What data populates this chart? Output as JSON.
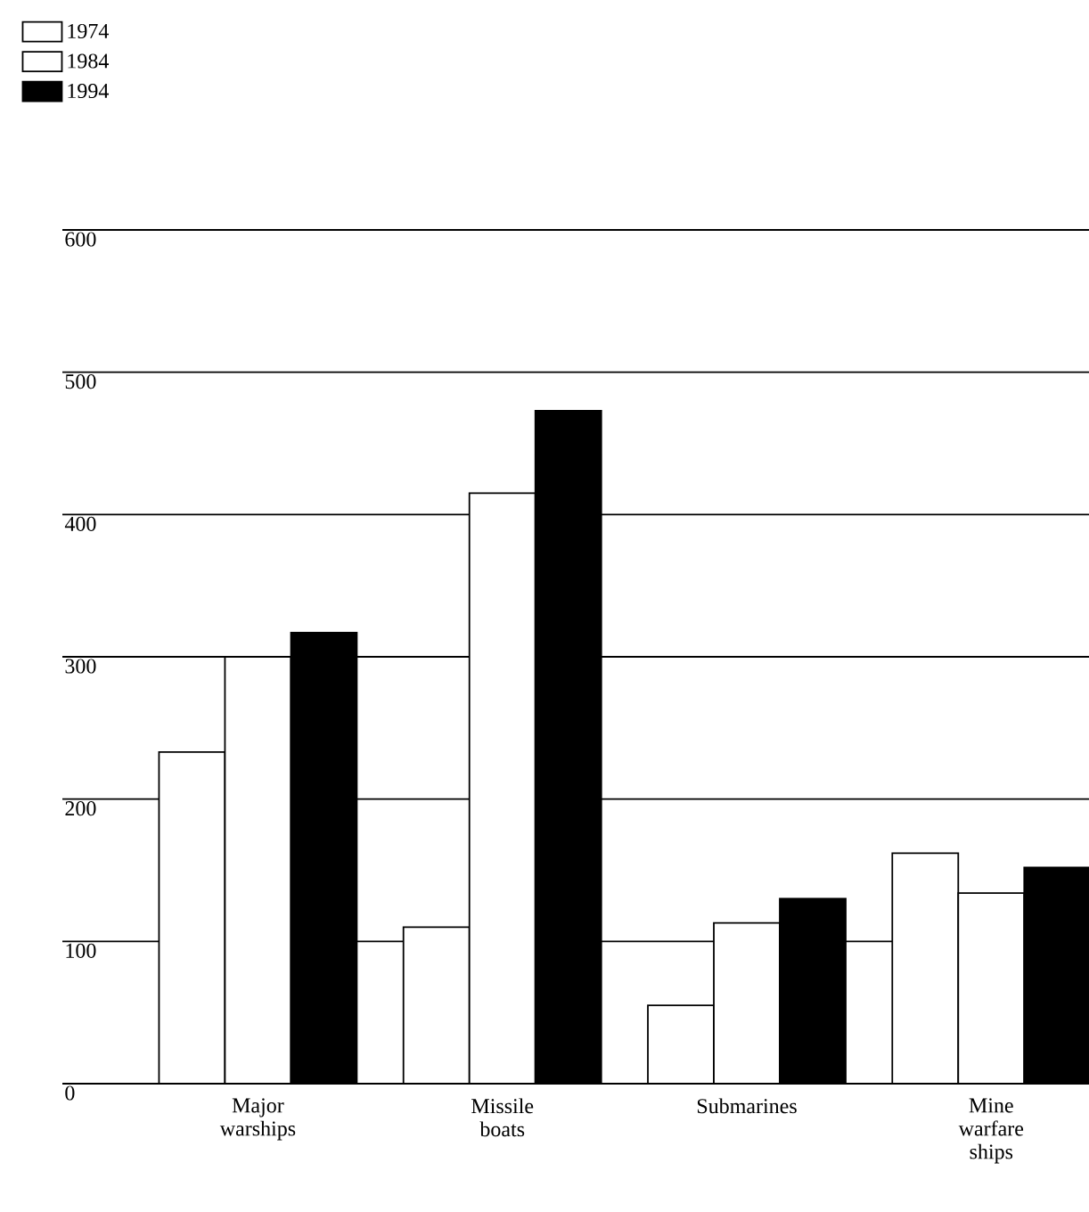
{
  "chart_data": {
    "type": "bar",
    "categories": [
      "Major warships",
      "Missile boats",
      "Submarines",
      "Mine warfare ships"
    ],
    "series": [
      {
        "name": "1974",
        "color": "#ffffff",
        "values": [
          233,
          110,
          55,
          162
        ]
      },
      {
        "name": "1984",
        "color": "#ffffff",
        "values": [
          300,
          415,
          113,
          134
        ]
      },
      {
        "name": "1994",
        "color": "#000000",
        "values": [
          317,
          473,
          130,
          152
        ]
      }
    ],
    "ylim": [
      0,
      600
    ],
    "yticks": [
      0,
      100,
      200,
      300,
      400,
      500,
      600
    ],
    "grid": "y",
    "legend": "top left"
  }
}
